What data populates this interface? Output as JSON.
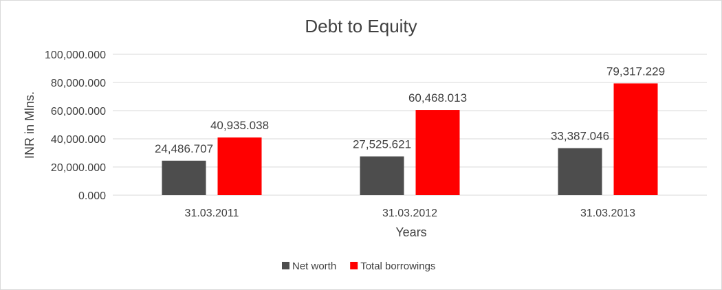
{
  "chart_data": {
    "type": "bar",
    "title": "Debt to Equity",
    "xlabel": "Years",
    "ylabel": "INR in Mlns.",
    "categories": [
      "31.03.2011",
      "31.03.2012",
      "31.03.2013"
    ],
    "series": [
      {
        "name": "Net worth",
        "color": "#4d4d4d",
        "values": [
          24486.707,
          27525.621,
          33387.046
        ],
        "labels": [
          "24,486.707",
          "27,525.621",
          "33,387.046"
        ]
      },
      {
        "name": "Total borrowings",
        "color": "#ff0000",
        "values": [
          40935.038,
          60468.013,
          79317.229
        ],
        "labels": [
          "40,935.038",
          "60,468.013",
          "79,317.229"
        ]
      }
    ],
    "ylim": [
      0,
      100000
    ],
    "yticks": [
      "0.000",
      "20,000.000",
      "40,000.000",
      "60,000.000",
      "80,000.000",
      "100,000.000"
    ],
    "grid": true,
    "legend_position": "bottom"
  }
}
